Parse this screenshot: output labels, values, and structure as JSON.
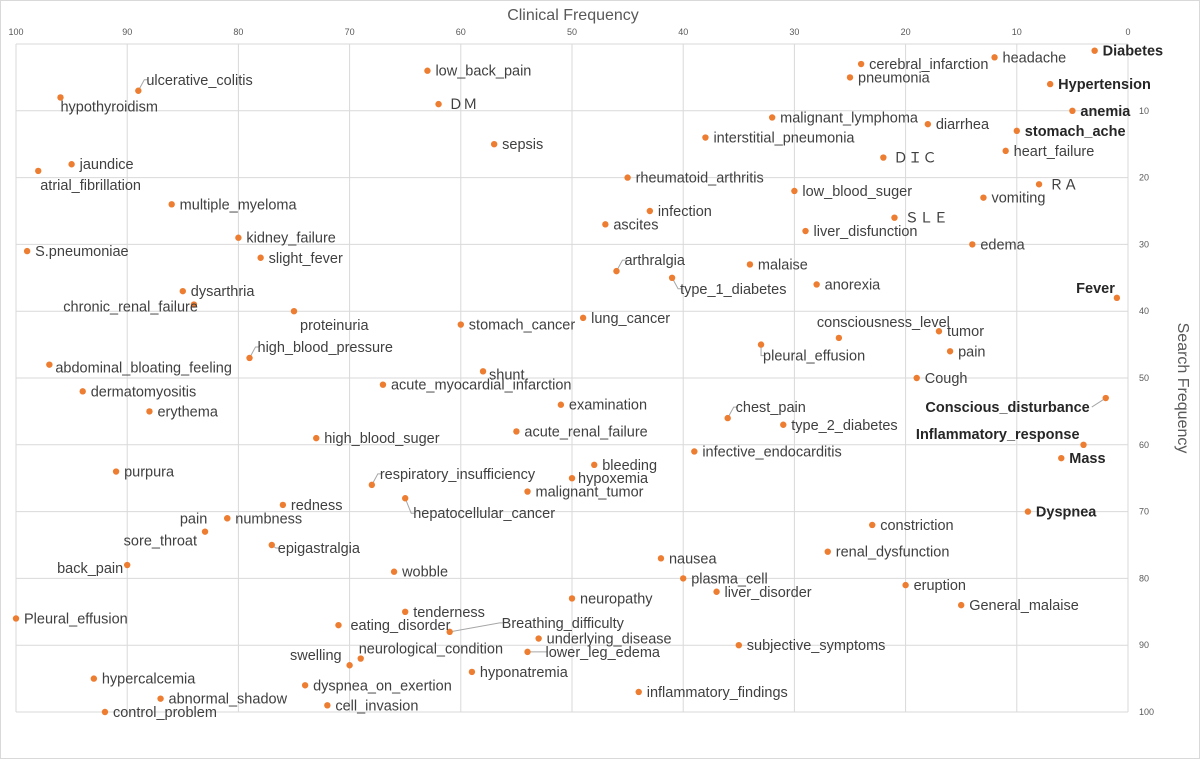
{
  "chart_data": {
    "type": "scatter",
    "xlabel": "Clinical Frequency",
    "ylabel": "Search Frequency",
    "xlim": [
      100,
      0
    ],
    "ylim": [
      100,
      0
    ],
    "x_reversed": true,
    "y_reversed": true,
    "x_ticks": [
      "100",
      "90",
      "80",
      "70",
      "60",
      "50",
      "40",
      "30",
      "20",
      "10",
      "0"
    ],
    "y_ticks": [
      "10",
      "20",
      "30",
      "40",
      "50",
      "60",
      "70",
      "80",
      "90",
      "100"
    ],
    "grid": true,
    "point_color": "#ed7d31",
    "points": [
      {
        "label": "Diabetes",
        "x": 3,
        "y": 1,
        "bold": true
      },
      {
        "label": "headache",
        "x": 12,
        "y": 2
      },
      {
        "label": "cerebral_infarction",
        "x": 24,
        "y": 3
      },
      {
        "label": "pneumonia",
        "x": 25,
        "y": 5
      },
      {
        "label": "Hypertension",
        "x": 7,
        "y": 6,
        "bold": true
      },
      {
        "label": "low_back_pain",
        "x": 63,
        "y": 4
      },
      {
        "label": "ulcerative_colitis",
        "x": 89,
        "y": 7
      },
      {
        "label": "hypothyroidism",
        "x": 96,
        "y": 8
      },
      {
        "label": "ＤＭ",
        "x": 62,
        "y": 9
      },
      {
        "label": "anemia",
        "x": 5,
        "y": 10,
        "bold": true
      },
      {
        "label": "malignant_lymphoma",
        "x": 32,
        "y": 11
      },
      {
        "label": "diarrhea",
        "x": 18,
        "y": 12
      },
      {
        "label": "stomach_ache",
        "x": 10,
        "y": 13,
        "bold": true
      },
      {
        "label": "interstitial_pneumonia",
        "x": 38,
        "y": 14
      },
      {
        "label": "sepsis",
        "x": 57,
        "y": 15
      },
      {
        "label": "heart_failure",
        "x": 11,
        "y": 16
      },
      {
        "label": "ＤＩＣ",
        "x": 22,
        "y": 17
      },
      {
        "label": "jaundice",
        "x": 95,
        "y": 18
      },
      {
        "label": "atrial_fibrillation",
        "x": 98,
        "y": 19
      },
      {
        "label": "rheumatoid_arthritis",
        "x": 45,
        "y": 20
      },
      {
        "label": "ＲＡ",
        "x": 8,
        "y": 21
      },
      {
        "label": "low_blood_suger",
        "x": 30,
        "y": 22
      },
      {
        "label": "vomiting",
        "x": 13,
        "y": 23
      },
      {
        "label": "multiple_myeloma",
        "x": 86,
        "y": 24
      },
      {
        "label": "infection",
        "x": 43,
        "y": 25
      },
      {
        "label": "ＳＬＥ",
        "x": 21,
        "y": 26
      },
      {
        "label": "ascites",
        "x": 47,
        "y": 27
      },
      {
        "label": "liver_disfunction",
        "x": 29,
        "y": 28
      },
      {
        "label": "kidney_failure",
        "x": 80,
        "y": 29
      },
      {
        "label": "edema",
        "x": 14,
        "y": 30
      },
      {
        "label": "S.pneumoniae",
        "x": 99,
        "y": 31
      },
      {
        "label": "slight_fever",
        "x": 78,
        "y": 32
      },
      {
        "label": "malaise",
        "x": 34,
        "y": 33
      },
      {
        "label": "arthralgia",
        "x": 46,
        "y": 34
      },
      {
        "label": "type_1_diabetes",
        "x": 41,
        "y": 35
      },
      {
        "label": "anorexia",
        "x": 28,
        "y": 36
      },
      {
        "label": "dysarthria",
        "x": 85,
        "y": 37
      },
      {
        "label": "Fever",
        "x": 1,
        "y": 38,
        "bold": true
      },
      {
        "label": "chronic_renal_failure",
        "x": 84,
        "y": 39
      },
      {
        "label": "proteinuria",
        "x": 75,
        "y": 40
      },
      {
        "label": "lung_cancer",
        "x": 49,
        "y": 41
      },
      {
        "label": "stomach_cancer",
        "x": 60,
        "y": 42
      },
      {
        "label": "consciousness_level",
        "x": 26,
        "y": 44
      },
      {
        "label": "tumor",
        "x": 17,
        "y": 43
      },
      {
        "label": "pleural_effusion",
        "x": 33,
        "y": 45
      },
      {
        "label": "pain",
        "x": 16,
        "y": 46
      },
      {
        "label": "high_blood_pressure",
        "x": 79,
        "y": 47
      },
      {
        "label": "abdominal_bloating_feeling",
        "x": 97,
        "y": 48
      },
      {
        "label": "shunt",
        "x": 58,
        "y": 49
      },
      {
        "label": "Cough",
        "x": 19,
        "y": 50
      },
      {
        "label": "acute_myocardial_infarction",
        "x": 67,
        "y": 51
      },
      {
        "label": "dermatomyositis",
        "x": 94,
        "y": 52
      },
      {
        "label": "Conscious_disturbance",
        "x": 2,
        "y": 53,
        "bold": true
      },
      {
        "label": "examination",
        "x": 51,
        "y": 54
      },
      {
        "label": "erythema",
        "x": 88,
        "y": 55
      },
      {
        "label": "chest_pain",
        "x": 36,
        "y": 56
      },
      {
        "label": "type_2_diabetes",
        "x": 31,
        "y": 57
      },
      {
        "label": "acute_renal_failure",
        "x": 55,
        "y": 58
      },
      {
        "label": "high_blood_suger",
        "x": 73,
        "y": 59
      },
      {
        "label": "Inflammatory_response",
        "x": 4,
        "y": 60,
        "bold": true
      },
      {
        "label": "infective_endocarditis",
        "x": 39,
        "y": 61
      },
      {
        "label": "Mass",
        "x": 6,
        "y": 62,
        "bold": true
      },
      {
        "label": "bleeding",
        "x": 48,
        "y": 63
      },
      {
        "label": "purpura",
        "x": 91,
        "y": 64
      },
      {
        "label": "hypoxemia",
        "x": 50,
        "y": 65
      },
      {
        "label": "respiratory_insufficiency",
        "x": 68,
        "y": 66
      },
      {
        "label": "malignant_tumor",
        "x": 54,
        "y": 67
      },
      {
        "label": "hepatocellular_cancer",
        "x": 65,
        "y": 68
      },
      {
        "label": "redness",
        "x": 76,
        "y": 69
      },
      {
        "label": "Dyspnea",
        "x": 9,
        "y": 70,
        "bold": true
      },
      {
        "label": "pain",
        "x": 81,
        "y": 71
      },
      {
        "label": "numbness",
        "x": 81,
        "y": 71
      },
      {
        "label": "constriction",
        "x": 23,
        "y": 72
      },
      {
        "label": "sore_throat",
        "x": 83,
        "y": 73
      },
      {
        "label": "epigastralgia",
        "x": 77,
        "y": 75
      },
      {
        "label": "renal_dysfunction",
        "x": 27,
        "y": 76
      },
      {
        "label": "nausea",
        "x": 42,
        "y": 77
      },
      {
        "label": "back_pain",
        "x": 90,
        "y": 78
      },
      {
        "label": "wobble",
        "x": 66,
        "y": 79
      },
      {
        "label": "plasma_cell",
        "x": 40,
        "y": 80
      },
      {
        "label": "eruption",
        "x": 20,
        "y": 81
      },
      {
        "label": "liver_disorder",
        "x": 37,
        "y": 82
      },
      {
        "label": "neuropathy",
        "x": 50,
        "y": 83
      },
      {
        "label": "General_malaise",
        "x": 15,
        "y": 84
      },
      {
        "label": "tenderness",
        "x": 65,
        "y": 85
      },
      {
        "label": "Pleural_effusion",
        "x": 100,
        "y": 86
      },
      {
        "label": "eating_disorder",
        "x": 71,
        "y": 87
      },
      {
        "label": "Breathing_difficulty",
        "x": 61,
        "y": 88
      },
      {
        "label": "underlying_disease",
        "x": 53,
        "y": 89
      },
      {
        "label": "subjective_symptoms",
        "x": 35,
        "y": 90
      },
      {
        "label": "lower_leg_edema",
        "x": 54,
        "y": 91
      },
      {
        "label": "neurological_condition",
        "x": 69,
        "y": 92
      },
      {
        "label": "swelling",
        "x": 70,
        "y": 93
      },
      {
        "label": "hyponatremia",
        "x": 59,
        "y": 94
      },
      {
        "label": "hypercalcemia",
        "x": 93,
        "y": 95
      },
      {
        "label": "dyspnea_on_exertion",
        "x": 74,
        "y": 96
      },
      {
        "label": "inflammatory_findings",
        "x": 44,
        "y": 97
      },
      {
        "label": "abnormal_shadow",
        "x": 87,
        "y": 98
      },
      {
        "label": "cell_invasion",
        "x": 72,
        "y": 99
      },
      {
        "label": "control_problem",
        "x": 92,
        "y": 100
      }
    ]
  }
}
